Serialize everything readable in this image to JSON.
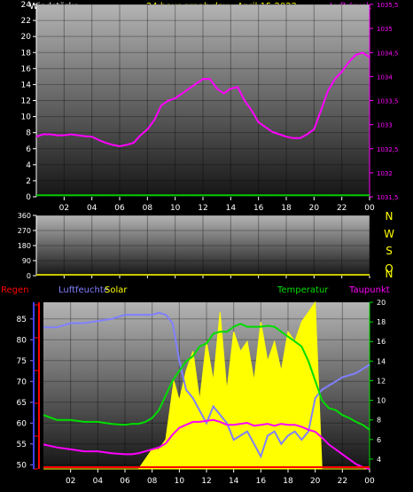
{
  "header": {
    "left": "Windstärke",
    "center": "24 hour graph day : April 15 2022",
    "right": "Luftdruck"
  },
  "legend2": {
    "regen": "Regen",
    "luftfeuchte": "Luftfeuchte",
    "solar": "Solar",
    "temperatur": "Temperatur",
    "taupunkt": "Taupunkt"
  },
  "colors": {
    "background": "#000000",
    "title": "#ffff00",
    "label": "#ffffff",
    "pressure": "#ff00ff",
    "wind": "#00c800",
    "direction_baseline": "#c8c800",
    "rain": "#ff0000",
    "humidity": "#8080ff",
    "solar": "#ffff00",
    "temperature": "#00dd00",
    "dewpoint": "#ff00ff",
    "axis_blue": "#4040ff"
  },
  "chart_data": [
    {
      "type": "line",
      "panel": "wind_pressure",
      "x_ticks": [
        "02",
        "04",
        "06",
        "08",
        "10",
        "12",
        "14",
        "16",
        "18",
        "20",
        "22",
        "00"
      ],
      "y_left_ticks": [
        "0",
        "2",
        "4",
        "6",
        "8",
        "10",
        "12",
        "14",
        "16",
        "18",
        "20",
        "22",
        "24"
      ],
      "ylim_left": [
        0,
        24
      ],
      "y_right_ticks": [
        "1031,5",
        "1032",
        "1032,5",
        "1033",
        "1033,5",
        "1034",
        "1034,5",
        "1035",
        "1035,5"
      ],
      "ylim_right": [
        1031.5,
        1035.5
      ],
      "series": [
        {
          "name": "Windstärke",
          "axis": "left",
          "x": [
            0,
            12,
            24
          ],
          "y": [
            0.2,
            0.2,
            0.2
          ]
        },
        {
          "name": "Luftdruck",
          "axis": "right",
          "x": [
            0,
            0.5,
            1,
            1.5,
            2,
            2.5,
            3,
            3.5,
            4,
            4.5,
            5,
            5.5,
            6,
            6.5,
            7,
            7.5,
            8,
            8.5,
            9,
            9.5,
            10,
            10.5,
            11,
            11.5,
            12,
            12.5,
            13,
            13.5,
            14,
            14.5,
            15,
            15.5,
            16,
            16.5,
            17,
            17.5,
            18,
            18.5,
            19,
            19.5,
            20,
            20.5,
            21,
            21.5,
            22,
            22.5,
            23,
            23.5,
            24
          ],
          "y": [
            1032.75,
            1032.8,
            1032.8,
            1032.78,
            1032.78,
            1032.8,
            1032.78,
            1032.76,
            1032.75,
            1032.68,
            1032.62,
            1032.58,
            1032.55,
            1032.58,
            1032.62,
            1032.78,
            1032.9,
            1033.1,
            1033.4,
            1033.5,
            1033.55,
            1033.65,
            1033.75,
            1033.85,
            1033.95,
            1033.95,
            1033.75,
            1033.65,
            1033.75,
            1033.78,
            1033.5,
            1033.3,
            1033.05,
            1032.95,
            1032.85,
            1032.8,
            1032.75,
            1032.72,
            1032.72,
            1032.8,
            1032.9,
            1033.3,
            1033.7,
            1033.95,
            1034.1,
            1034.3,
            1034.45,
            1034.5,
            1034.4
          ]
        }
      ]
    },
    {
      "type": "line",
      "panel": "wind_direction",
      "x_ticks": [
        "02",
        "04",
        "06",
        "08",
        "10",
        "12",
        "14",
        "16",
        "18",
        "20",
        "22",
        "00"
      ],
      "y_left_ticks": [
        "0",
        "90",
        "180",
        "270",
        "360"
      ],
      "ylim_left": [
        0,
        360
      ],
      "compass_labels": [
        "N",
        "W",
        "S",
        "O",
        "N"
      ],
      "series": [
        {
          "name": "Windrichtung",
          "x": [
            0,
            24
          ],
          "y": [
            0,
            0
          ]
        }
      ]
    },
    {
      "type": "line",
      "panel": "climate",
      "x_ticks": [
        "02",
        "04",
        "06",
        "08",
        "10",
        "12",
        "14",
        "16",
        "18",
        "20",
        "22",
        "00"
      ],
      "y_left_ticks": [
        "50",
        "55",
        "60",
        "65",
        "70",
        "75",
        "80",
        "85"
      ],
      "ylim_left": [
        49,
        89
      ],
      "y_right_ticks": [
        "4",
        "6",
        "8",
        "10",
        "12",
        "14",
        "16",
        "18",
        "20"
      ],
      "ylim_right": [
        3,
        20
      ],
      "series": [
        {
          "name": "Regen",
          "axis": "rain",
          "x": [
            0,
            24
          ],
          "y": [
            0,
            0
          ]
        },
        {
          "name": "Luftfeuchte",
          "axis": "left",
          "x": [
            0,
            1,
            2,
            3,
            4,
            5,
            6,
            6.5,
            7,
            7.5,
            8,
            8.5,
            9,
            9.5,
            10,
            10.5,
            11,
            11.5,
            12,
            12.5,
            13,
            13.5,
            14,
            14.5,
            15,
            15.5,
            16,
            16.5,
            17,
            17.5,
            18,
            18.5,
            19,
            19.5,
            20,
            20.5,
            21,
            21.5,
            22,
            22.5,
            23,
            23.5,
            24
          ],
          "y": [
            83,
            83,
            84,
            84,
            84.5,
            85,
            86,
            86,
            86,
            86,
            86,
            86.5,
            86,
            84,
            75,
            68,
            66,
            63,
            60,
            64,
            62,
            60,
            56,
            57,
            58,
            55,
            52,
            57,
            58,
            55,
            57,
            58,
            56,
            58,
            66,
            68,
            69,
            70,
            71,
            71.5,
            72,
            73,
            74
          ]
        },
        {
          "name": "Solar",
          "axis": "right",
          "x": [
            0,
            7,
            7.5,
            8,
            8.5,
            9,
            9.3,
            9.6,
            10,
            10.5,
            11,
            11.5,
            12,
            12.5,
            13,
            13.5,
            14,
            14.5,
            15,
            15.5,
            16,
            16.5,
            17,
            17.5,
            18,
            18.5,
            19,
            19.5,
            20,
            20.5,
            21,
            22,
            23,
            24
          ],
          "y": [
            3,
            3,
            4,
            5,
            5,
            6,
            9,
            12,
            10,
            13,
            15,
            10,
            16,
            12,
            19,
            11,
            17,
            15,
            16,
            12,
            18,
            14,
            16,
            13,
            17,
            16,
            18,
            19,
            20,
            3,
            3,
            3,
            3,
            3
          ]
        },
        {
          "name": "Temperatur",
          "axis": "right",
          "x": [
            0,
            1,
            2,
            3,
            4,
            5,
            6,
            6.5,
            7,
            7.5,
            8,
            8.5,
            9,
            9.5,
            10,
            10.5,
            11,
            11.5,
            12,
            12.5,
            13,
            13.5,
            14,
            14.5,
            15,
            15.5,
            16,
            16.5,
            17,
            17.5,
            18,
            18.5,
            19,
            19.5,
            20,
            20.5,
            21,
            21.5,
            22,
            22.5,
            23,
            23.5,
            24
          ],
          "y": [
            8.5,
            8,
            8,
            7.8,
            7.8,
            7.6,
            7.5,
            7.6,
            7.6,
            7.8,
            8.2,
            9,
            10.5,
            12,
            13,
            14,
            14.5,
            15.5,
            15.8,
            16.8,
            17,
            17,
            17.5,
            17.8,
            17.5,
            17.5,
            17.5,
            17.6,
            17.5,
            17,
            16.5,
            16,
            15.5,
            14,
            12,
            10,
            9.2,
            9,
            8.5,
            8.2,
            7.8,
            7.5,
            7
          ]
        },
        {
          "name": "Taupunkt",
          "axis": "right",
          "x": [
            0,
            1,
            2,
            3,
            4,
            5,
            6,
            6.5,
            7,
            7.5,
            8,
            8.5,
            9,
            9.5,
            10,
            10.5,
            11,
            11.5,
            12,
            12.5,
            13,
            13.5,
            14,
            14.5,
            15,
            15.5,
            16,
            16.5,
            17,
            17.5,
            18,
            18.5,
            19,
            19.5,
            20,
            20.5,
            21,
            21.5,
            22,
            22.5,
            23,
            23.5,
            24
          ],
          "y": [
            5.5,
            5.2,
            5,
            4.8,
            4.8,
            4.6,
            4.5,
            4.5,
            4.6,
            4.8,
            5,
            5.2,
            5.6,
            6.5,
            7.2,
            7.5,
            7.8,
            7.8,
            7.9,
            8,
            7.8,
            7.5,
            7.5,
            7.6,
            7.7,
            7.4,
            7.5,
            7.6,
            7.4,
            7.6,
            7.5,
            7.5,
            7.3,
            7,
            6.8,
            6.2,
            5.5,
            5,
            4.5,
            4,
            3.5,
            3.2,
            3
          ]
        }
      ]
    }
  ]
}
